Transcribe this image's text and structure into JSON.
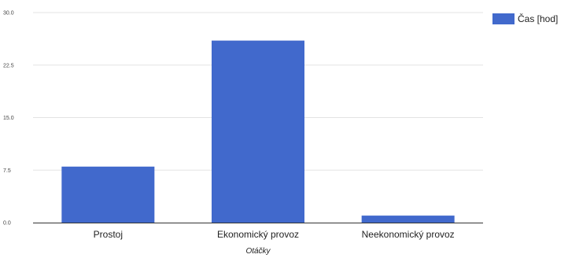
{
  "chart_data": {
    "type": "bar",
    "categories": [
      "Prostoj",
      "Ekonomický provoz",
      "Neekonomický provoz"
    ],
    "series": [
      {
        "name": "Čas [hod]",
        "values": [
          8,
          26,
          1
        ],
        "color": "#4169cc"
      }
    ],
    "xlabel": "Otáčky",
    "ylabel": "",
    "ylim": [
      0,
      30
    ],
    "yticks": [
      "0.0",
      "7.5",
      "15.0",
      "22.5",
      "30.0"
    ],
    "grid": true,
    "legend_position": "top-right"
  }
}
